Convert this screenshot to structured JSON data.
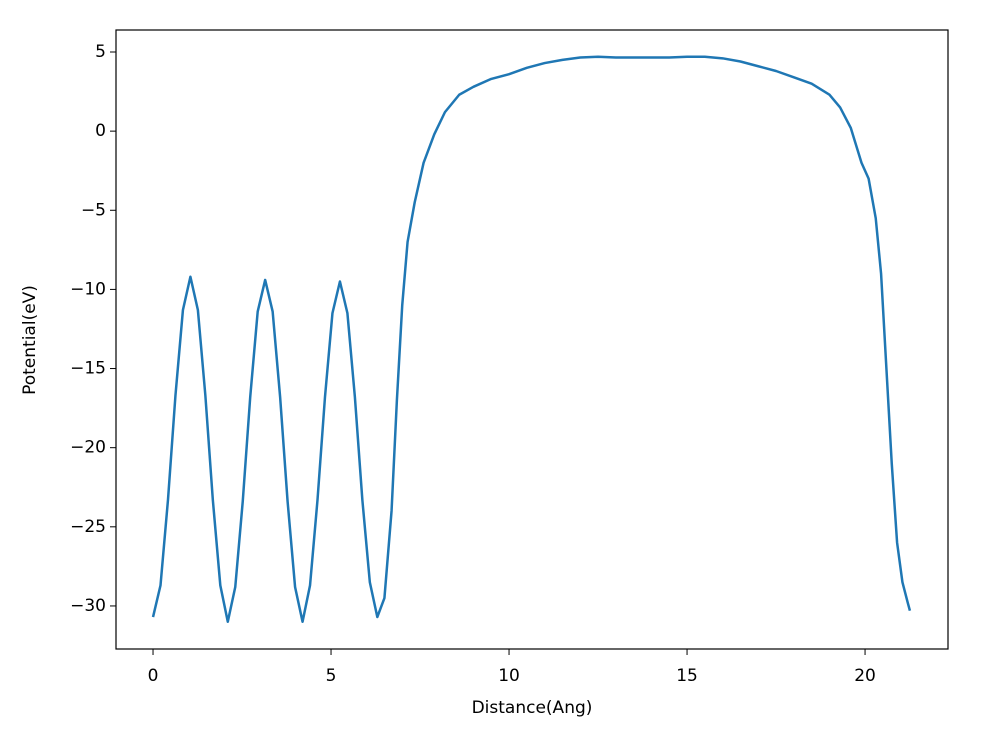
{
  "chart_data": {
    "type": "line",
    "x_label": "Distance(Ang)",
    "y_label": "Potential(eV)",
    "x": [
      0,
      0.21,
      0.42,
      0.63,
      0.84,
      1.05,
      1.26,
      1.47,
      1.68,
      1.89,
      2.1,
      2.31,
      2.52,
      2.73,
      2.94,
      3.15,
      3.36,
      3.57,
      3.78,
      3.99,
      4.2,
      4.41,
      4.62,
      4.83,
      5.04,
      5.25,
      5.46,
      5.67,
      5.88,
      6.09,
      6.3,
      6.5,
      6.7,
      6.85,
      7.0,
      7.15,
      7.35,
      7.6,
      7.9,
      8.2,
      8.6,
      9.0,
      9.5,
      10,
      10.5,
      11,
      11.5,
      12,
      12.5,
      13,
      13.5,
      14,
      14.5,
      15,
      15.5,
      16,
      16.5,
      17,
      17.5,
      18,
      18.5,
      19,
      19.3,
      19.6,
      19.9,
      20.1,
      20.3,
      20.45,
      20.6,
      20.75,
      20.9,
      21.05,
      21.2,
      21.26
    ],
    "series": [
      {
        "color": "#1f77b4",
        "values": [
          -30.7,
          -28.7,
          -23.3,
          -16.7,
          -11.3,
          -9.2,
          -11.3,
          -16.7,
          -23.3,
          -28.7,
          -31.0,
          -28.8,
          -23.4,
          -16.8,
          -11.4,
          -9.4,
          -11.4,
          -16.8,
          -23.4,
          -28.8,
          -31.0,
          -28.7,
          -23.3,
          -16.8,
          -11.5,
          -9.5,
          -11.5,
          -16.8,
          -23.3,
          -28.5,
          -30.7,
          -29.5,
          -24,
          -17,
          -11,
          -7,
          -4.5,
          -2,
          -0.2,
          1.2,
          2.3,
          2.8,
          3.3,
          3.6,
          4.0,
          4.3,
          4.5,
          4.65,
          4.7,
          4.65,
          4.65,
          4.65,
          4.65,
          4.7,
          4.7,
          4.6,
          4.4,
          4.1,
          3.8,
          3.4,
          3.0,
          2.3,
          1.5,
          0.2,
          -2,
          -3,
          -5.5,
          -9,
          -15,
          -21,
          -26,
          -28.5,
          -29.8,
          -30.3
        ]
      }
    ],
    "xlim": [
      -1.04,
      22.33
    ],
    "xticks": [
      0,
      5,
      10,
      15,
      20
    ],
    "ylim": [
      -32.72,
      6.39
    ],
    "yticks": [
      5,
      0,
      {
        "value": -5,
        "label": "−5"
      },
      {
        "value": -10,
        "label": "−10"
      },
      {
        "value": -15,
        "label": "−15"
      },
      {
        "value": -20,
        "label": "−20"
      },
      {
        "value": -25,
        "label": "−25"
      },
      {
        "value": -30,
        "label": "−30"
      }
    ]
  }
}
